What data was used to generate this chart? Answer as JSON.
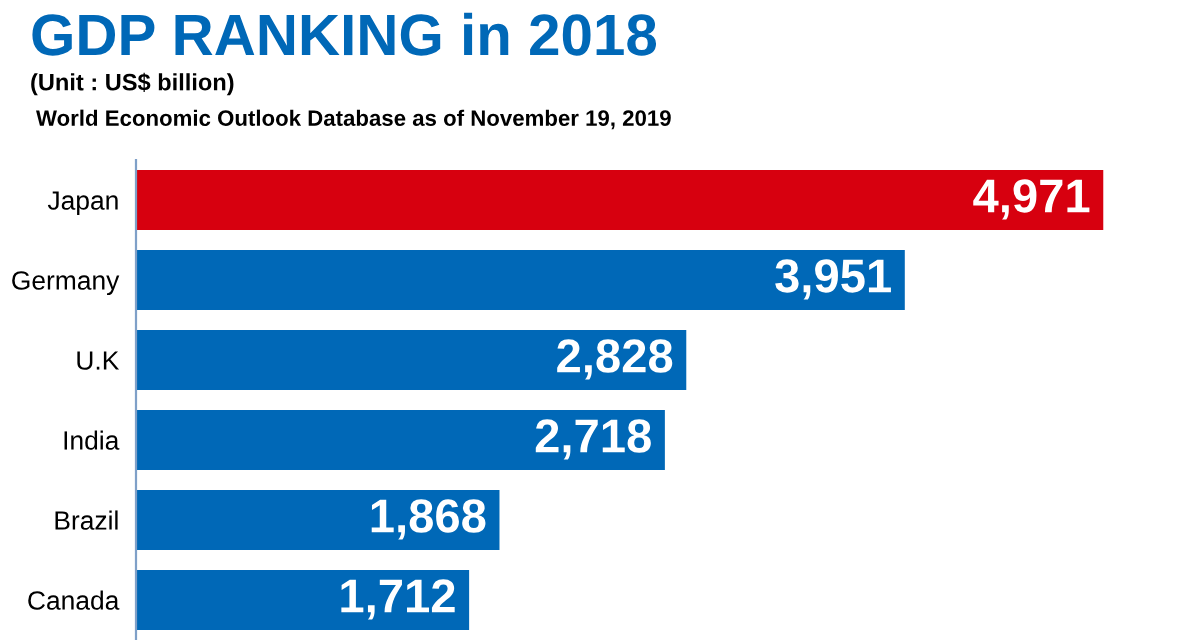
{
  "chart_data": {
    "type": "bar",
    "orientation": "horizontal",
    "title": "GDP RANKING in 2018",
    "subtitle": "(Unit : US$ billion)",
    "annotations": [
      "World Economic Outlook Database as of November 19, 2019"
    ],
    "categories": [
      "Japan",
      "Germany",
      "U.K",
      "India",
      "Brazil",
      "Canada"
    ],
    "values": [
      4971,
      3951,
      2828,
      2718,
      1868,
      1712
    ],
    "colors": [
      "#d7000f",
      "#0068b7",
      "#0068b7",
      "#0068b7",
      "#0068b7",
      "#0068b7"
    ],
    "value_labels": [
      "4,971",
      "3,951",
      "2,828",
      "2,718",
      "1,868",
      "1,712"
    ],
    "tick_labels": "y",
    "grid": false
  }
}
